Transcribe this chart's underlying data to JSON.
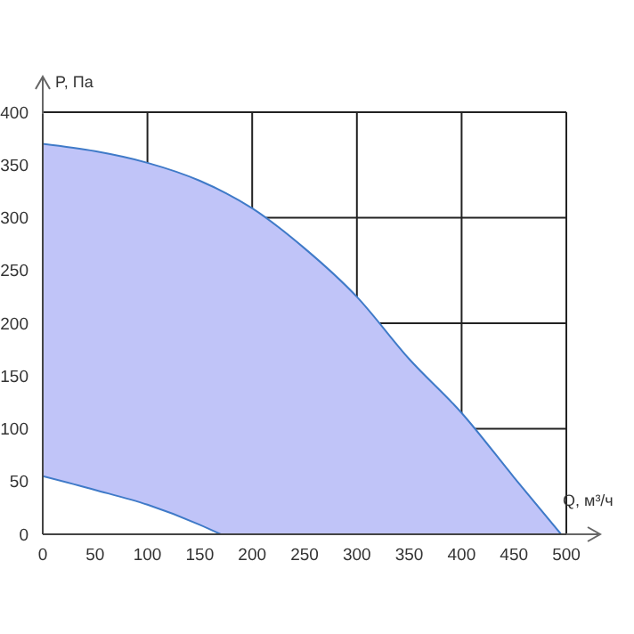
{
  "chart_data": {
    "type": "area",
    "xlabel": "Q, м³/ч",
    "ylabel": "P, Па",
    "series": [
      {
        "color": "#c0c4f8",
        "x": [
          0,
          50,
          100,
          150,
          200,
          250,
          300,
          350,
          400,
          450,
          495
        ],
        "values": [
          370,
          363,
          352,
          335,
          309,
          271,
          225,
          166,
          115,
          54,
          0
        ]
      },
      {
        "type": "line",
        "color": "#3f7ac8",
        "x": [
          0,
          50,
          100,
          150,
          170
        ],
        "values": [
          55,
          42,
          28,
          9,
          0
        ]
      }
    ],
    "xlim": [
      0,
      500
    ],
    "xticks": [
      0,
      50,
      100,
      150,
      200,
      250,
      300,
      350,
      400,
      450,
      500
    ],
    "ylim": [
      0,
      400
    ],
    "yticks": [
      0,
      50,
      100,
      150,
      200,
      250,
      300,
      350,
      400
    ],
    "grid": true
  }
}
